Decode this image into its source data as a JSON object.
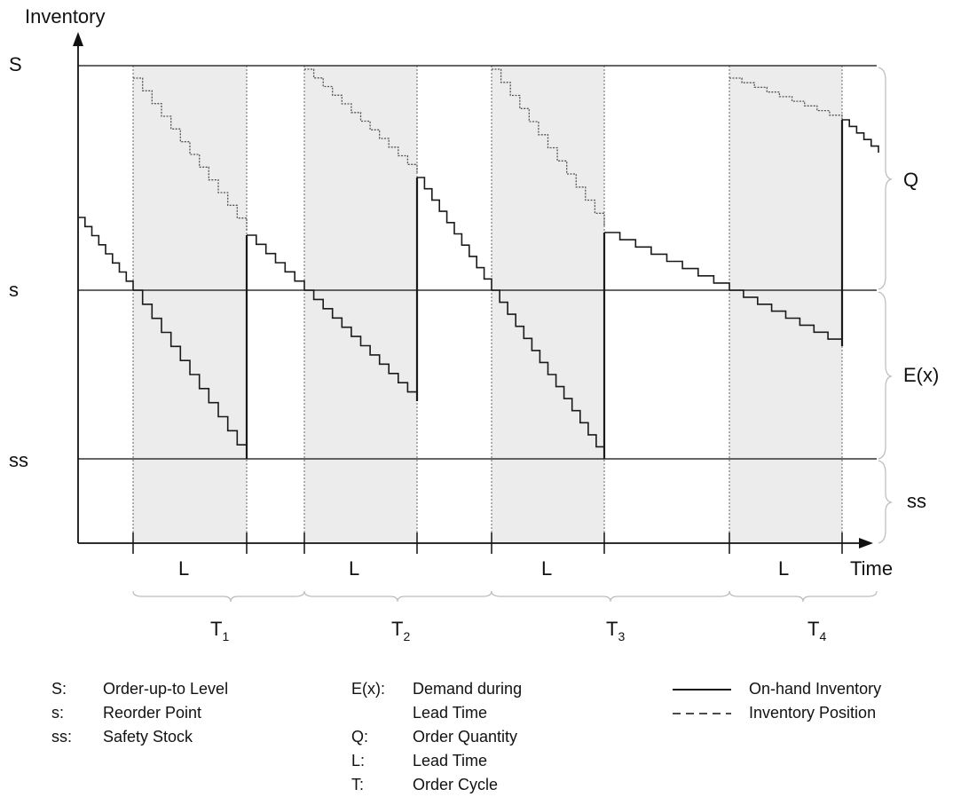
{
  "axes": {
    "y_label": "Inventory",
    "x_label": "Time"
  },
  "levels": {
    "S": "S",
    "s": "s",
    "ss": "ss"
  },
  "braces": {
    "Q": "Q",
    "Ex": "E(x)",
    "ss": "ss"
  },
  "intervals": {
    "lead_time": [
      "L",
      "L",
      "L",
      "L"
    ],
    "cycles": [
      {
        "main": "T",
        "sub": "1"
      },
      {
        "main": "T",
        "sub": "2"
      },
      {
        "main": "T",
        "sub": "3"
      },
      {
        "main": "T",
        "sub": "4"
      }
    ]
  },
  "legend_left": [
    {
      "key": "S:",
      "value": "Order-up-to Level"
    },
    {
      "key": "s:",
      "value": "Reorder Point"
    },
    {
      "key": "ss:",
      "value": "Safety Stock"
    }
  ],
  "legend_middle": [
    {
      "key": "E(x):",
      "value": "Demand during"
    },
    {
      "key": "",
      "value": "Lead Time"
    },
    {
      "key": "Q:",
      "value": "Order Quantity"
    },
    {
      "key": "L:",
      "value": "Lead Time"
    },
    {
      "key": "T:",
      "value": "Order Cycle"
    }
  ],
  "legend_right": [
    {
      "style": "solid",
      "value": "On-hand Inventory"
    },
    {
      "style": "dashed",
      "value": "Inventory Position"
    }
  ],
  "colors": {
    "lead_time_shading": "#ececec",
    "line": "#1a1a1a",
    "position_line": "#555555"
  }
}
